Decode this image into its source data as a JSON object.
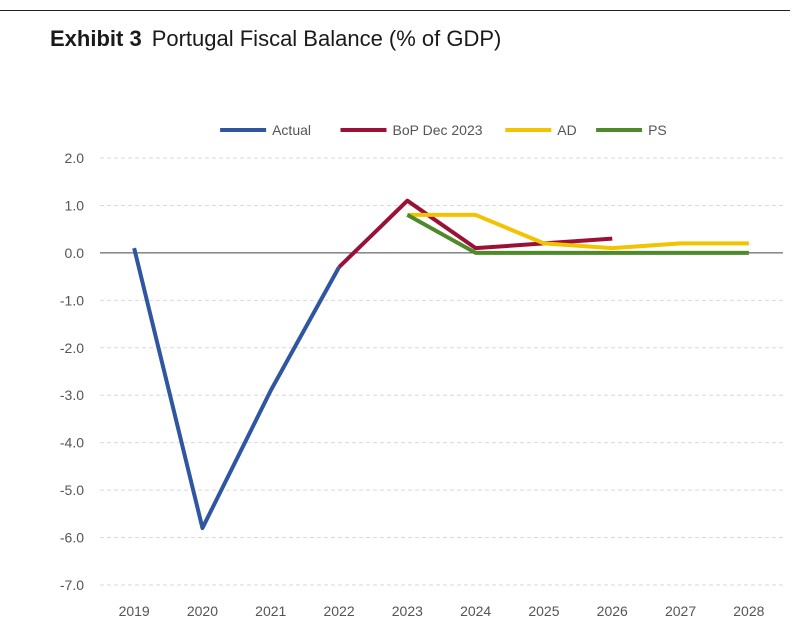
{
  "header": {
    "exhibit": "Exhibit 3",
    "title": "Portugal Fiscal Balance (% of GDP)"
  },
  "chart_data": {
    "type": "line",
    "title": "Portugal Fiscal Balance (% of GDP)",
    "xlabel": "",
    "ylabel": "",
    "x": [
      "2019",
      "2020",
      "2021",
      "2022",
      "2023",
      "2024",
      "2025",
      "2026",
      "2027",
      "2028"
    ],
    "ylim": [
      -7.0,
      2.0
    ],
    "yticks": [
      2.0,
      1.0,
      0.0,
      -1.0,
      -2.0,
      -3.0,
      -4.0,
      -5.0,
      -6.0,
      -7.0
    ],
    "ytick_labels": [
      "2.0",
      "1.0",
      "0.0",
      "-1.0",
      "-2.0",
      "-3.0",
      "-4.0",
      "-5.0",
      "-6.0",
      "-7.0"
    ],
    "grid": "horizontal dashed",
    "legend_position": "top-center",
    "series": [
      {
        "name": "Actual",
        "color": "#2f56a0",
        "values": [
          0.1,
          -5.8,
          -2.9,
          -0.3,
          null,
          null,
          null,
          null,
          null,
          null
        ]
      },
      {
        "name": "BoP Dec 2023",
        "color": "#9b1036",
        "values": [
          null,
          null,
          null,
          -0.3,
          1.1,
          0.1,
          0.2,
          0.3,
          null,
          null
        ]
      },
      {
        "name": "AD",
        "color": "#f2c300",
        "values": [
          null,
          null,
          null,
          null,
          0.8,
          0.8,
          0.2,
          0.1,
          0.2,
          0.2
        ]
      },
      {
        "name": "PS",
        "color": "#4e8a2a",
        "values": [
          null,
          null,
          null,
          null,
          0.8,
          0.0,
          0.0,
          0.0,
          0.0,
          0.0
        ]
      }
    ]
  }
}
